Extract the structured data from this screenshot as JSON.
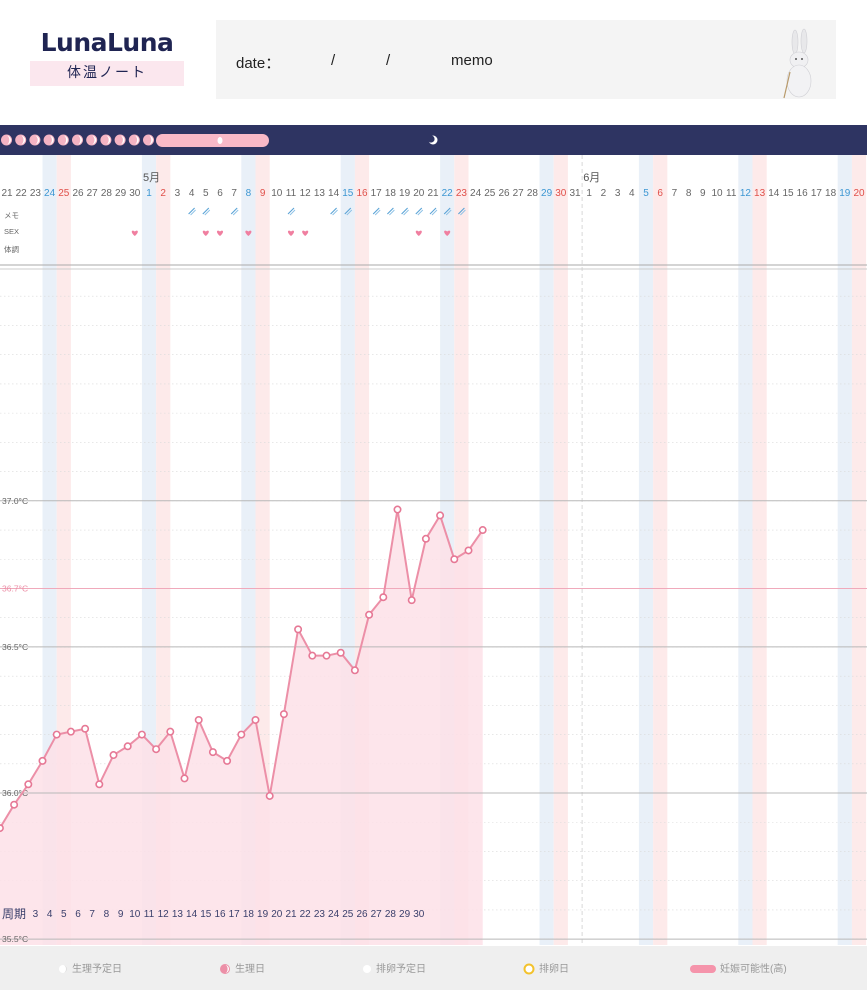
{
  "header": {
    "logo_text": "LunaLuna",
    "logo_sub": "体温ノート",
    "date_label": "date：",
    "slash1": "/",
    "slash2": "/",
    "memo_label": "memo"
  },
  "colors": {
    "navy": "#2e3462",
    "pink_line": "#ec8fa7",
    "pink_fill": "#fde1e7",
    "blue_band": "#e9f0f8",
    "red_band": "#fdeaea",
    "saturday": "#3d97d3",
    "sunday": "#e0504a"
  },
  "calendar": {
    "month_labels": [
      {
        "label": "5月",
        "at_index": 10
      },
      {
        "label": "6月",
        "at_index": 41
      }
    ],
    "days": [
      21,
      22,
      23,
      24,
      25,
      26,
      27,
      28,
      29,
      30,
      1,
      2,
      3,
      4,
      5,
      6,
      7,
      8,
      9,
      10,
      11,
      12,
      13,
      14,
      15,
      16,
      17,
      18,
      19,
      20,
      21,
      22,
      23,
      24,
      25,
      26,
      27,
      28,
      29,
      30,
      31,
      1,
      2,
      3,
      4,
      5,
      6,
      7,
      8,
      9,
      10,
      11,
      12,
      13,
      14,
      15,
      16,
      17,
      18,
      19,
      20
    ],
    "saturday_indices": [
      3,
      10,
      17,
      24,
      31,
      38,
      45,
      52,
      59
    ],
    "sunday_indices": [
      4,
      11,
      18,
      25,
      32,
      39,
      46,
      53,
      60
    ],
    "row_labels": [
      "メモ",
      "SEX",
      "体調"
    ],
    "memo_indices": [
      13,
      14,
      16,
      20,
      23,
      24,
      26,
      27,
      28,
      29,
      30,
      31,
      32
    ],
    "sex_indices": [
      9,
      14,
      15,
      17,
      20,
      21,
      29,
      31
    ],
    "cycle_label": "周期",
    "cycle_days": [
      "3",
      "4",
      "5",
      "6",
      "7",
      "8",
      "9",
      "10",
      "11",
      "12",
      "13",
      "14",
      "15",
      "16",
      "17",
      "18",
      "19",
      "20",
      "21",
      "22",
      "23",
      "24",
      "25",
      "26",
      "27",
      "28",
      "29",
      "30"
    ]
  },
  "chart_data": {
    "type": "line",
    "title": "",
    "xlabel": "",
    "ylabel": "",
    "ylim": [
      35.48,
      37.8
    ],
    "yticks": [
      {
        "label": "37.0°C",
        "value": 37.0
      },
      {
        "label": "36.7°C",
        "value": 36.7
      },
      {
        "label": "36.5°C",
        "value": 36.5
      },
      {
        "label": "36.0°C",
        "value": 36.0
      },
      {
        "label": "35.5°C",
        "value": 35.5
      }
    ],
    "reference_line": 36.7,
    "x_index_start": -0.5,
    "series": [
      {
        "values": [
          35.88,
          35.96,
          36.03,
          36.11,
          36.2,
          36.21,
          36.22,
          36.03,
          36.13,
          36.16,
          36.2,
          36.15,
          36.21,
          36.05,
          36.25,
          36.14,
          36.11,
          36.2,
          36.25,
          35.99,
          36.27,
          36.56,
          36.47,
          36.47,
          36.48,
          36.42,
          36.61,
          36.67,
          36.97,
          36.66,
          36.87,
          36.95,
          36.8,
          36.83,
          36.9
        ]
      }
    ],
    "grid": true
  },
  "legend": [
    {
      "icon": "expected-period-icon",
      "label": "生理予定日"
    },
    {
      "icon": "period-icon",
      "label": "生理日"
    },
    {
      "icon": "expected-ovulation-icon",
      "label": "排卵予定日"
    },
    {
      "icon": "ovulation-icon",
      "label": "排卵日"
    },
    {
      "icon": "fertile-icon",
      "label": "妊娠可能性(高)"
    }
  ]
}
